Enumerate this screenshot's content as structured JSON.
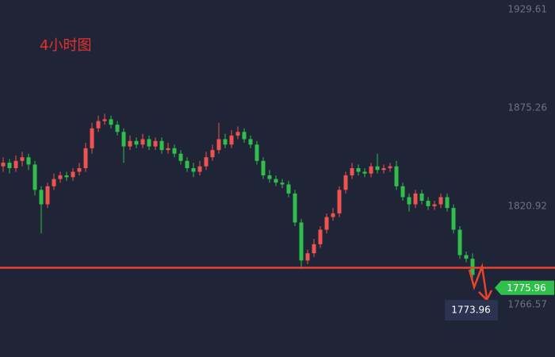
{
  "chart_data": {
    "type": "candlestick",
    "title": "4小时图",
    "open": [
      1843,
      1845,
      1842,
      1846,
      1848,
      1844,
      1830,
      1822,
      1832,
      1836,
      1838,
      1837,
      1840,
      1842,
      1853,
      1864,
      1868,
      1869,
      1866,
      1862,
      1854,
      1857,
      1855,
      1858,
      1854,
      1857,
      1852,
      1853,
      1850,
      1846,
      1842,
      1840,
      1843,
      1848,
      1852,
      1858,
      1855,
      1860,
      1862,
      1858,
      1855,
      1846,
      1838,
      1836,
      1834,
      1833,
      1828,
      1812,
      1791,
      1795,
      1800,
      1808,
      1815,
      1817,
      1830,
      1838,
      1842,
      1840,
      1839,
      1843,
      1841,
      1842,
      1843,
      1832,
      1826,
      1822,
      1828,
      1824,
      1821,
      1822,
      1826,
      1820,
      1808,
      1794,
      1792
    ],
    "high": [
      1848,
      1847,
      1849,
      1851,
      1850,
      1846,
      1832,
      1834,
      1839,
      1840,
      1840,
      1842,
      1845,
      1856,
      1867,
      1871,
      1872,
      1871,
      1868,
      1864,
      1860,
      1859,
      1861,
      1860,
      1859,
      1859,
      1856,
      1855,
      1852,
      1848,
      1845,
      1846,
      1851,
      1855,
      1867,
      1861,
      1863,
      1865,
      1864,
      1860,
      1857,
      1848,
      1841,
      1838,
      1836,
      1835,
      1830,
      1814,
      1797,
      1803,
      1810,
      1817,
      1820,
      1832,
      1840,
      1845,
      1844,
      1842,
      1845,
      1850,
      1844,
      1845,
      1846,
      1834,
      1828,
      1830,
      1830,
      1826,
      1824,
      1828,
      1828,
      1822,
      1810,
      1796,
      1795
    ],
    "low": [
      1840,
      1839,
      1840,
      1843,
      1841,
      1827,
      1806,
      1820,
      1830,
      1834,
      1835,
      1835,
      1838,
      1840,
      1850,
      1862,
      1866,
      1864,
      1860,
      1845,
      1852,
      1853,
      1853,
      1852,
      1852,
      1850,
      1850,
      1848,
      1844,
      1840,
      1837,
      1838,
      1841,
      1846,
      1850,
      1853,
      1853,
      1858,
      1856,
      1853,
      1844,
      1836,
      1834,
      1832,
      1831,
      1826,
      1810,
      1787,
      1789,
      1793,
      1798,
      1806,
      1813,
      1815,
      1828,
      1836,
      1838,
      1837,
      1837,
      1839,
      1839,
      1840,
      1830,
      1824,
      1818,
      1820,
      1822,
      1819,
      1819,
      1820,
      1818,
      1806,
      1792,
      1790,
      1780
    ],
    "close": [
      1845,
      1842,
      1846,
      1848,
      1844,
      1830,
      1822,
      1832,
      1836,
      1838,
      1837,
      1840,
      1842,
      1853,
      1864,
      1868,
      1869,
      1866,
      1862,
      1854,
      1857,
      1855,
      1858,
      1854,
      1857,
      1852,
      1853,
      1850,
      1846,
      1842,
      1840,
      1843,
      1848,
      1852,
      1858,
      1855,
      1860,
      1862,
      1858,
      1855,
      1846,
      1838,
      1836,
      1834,
      1833,
      1828,
      1812,
      1791,
      1795,
      1800,
      1808,
      1815,
      1817,
      1830,
      1838,
      1842,
      1840,
      1839,
      1843,
      1841,
      1842,
      1843,
      1832,
      1826,
      1822,
      1828,
      1824,
      1821,
      1822,
      1826,
      1820,
      1808,
      1794,
      1792,
      1783
    ],
    "up_color": "#ef5350",
    "down_color": "#2fbf4a",
    "ylim": [
      1737.72,
      1934.85
    ],
    "yticks": [
      1929.61,
      1875.26,
      1820.92,
      1766.57
    ],
    "support_line": {
      "value": 1787,
      "color": "#e8432e"
    },
    "current_price": 1775.96,
    "crosshair_price": 1773.96
  }
}
